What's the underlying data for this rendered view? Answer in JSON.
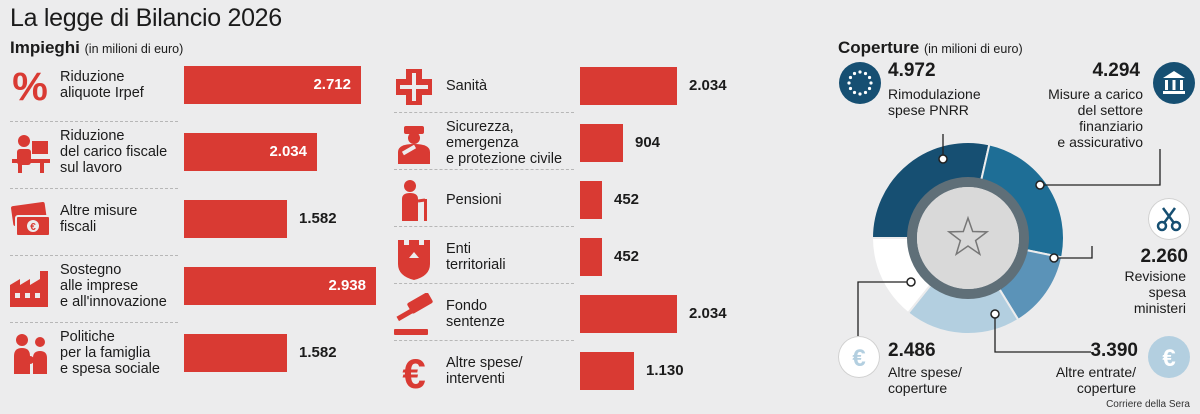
{
  "title": "La legge di Bilancio 2026",
  "impieghi": {
    "heading": "Impieghi",
    "unit": "(in milioni di euro)",
    "left": [
      {
        "label": "Riduzione\naliquote Irpef",
        "value": "2.712",
        "icon": "percent-icon"
      },
      {
        "label": "Riduzione\ndel carico fiscale\nsul lavoro",
        "value": "2.034",
        "icon": "worker-desk-icon"
      },
      {
        "label": "Altre misure\nfiscali",
        "value": "1.582",
        "icon": "banknotes-icon"
      },
      {
        "label": "Sostegno\nalle imprese\ne all'innovazione",
        "value": "2.938",
        "icon": "factory-icon"
      },
      {
        "label": "Politiche\nper la famiglia\ne spesa sociale",
        "value": "1.582",
        "icon": "family-icon"
      }
    ],
    "right": [
      {
        "label": "Sanità",
        "value": "2.034",
        "icon": "health-cross-icon"
      },
      {
        "label": "Sicurezza,\nemergenza\ne protezione civile",
        "value": "904",
        "icon": "police-officer-icon"
      },
      {
        "label": "Pensioni",
        "value": "452",
        "icon": "elderly-person-icon"
      },
      {
        "label": "Enti\nterritoriali",
        "value": "452",
        "icon": "coat-of-arms-icon"
      },
      {
        "label": "Fondo\nsentenze",
        "value": "2.034",
        "icon": "gavel-icon"
      },
      {
        "label": "Altre spese/\ninterventi",
        "value": "1.130",
        "icon": "euro-icon"
      }
    ]
  },
  "coperture": {
    "heading": "Coperture",
    "unit": "(in milioni di euro)",
    "items": [
      {
        "label": "Rimodulazione\nspese PNRR",
        "value": "4.972",
        "icon": "eu-flag-icon",
        "color": "#164f72"
      },
      {
        "label": "Misure a carico\ndel settore\nfinanziario\ne assicurativo",
        "value": "4.294",
        "icon": "bank-icon",
        "color": "#1e6e96"
      },
      {
        "label": "Revisione\nspesa\nministeri",
        "value": "2.260",
        "icon": "scissors-icon",
        "color": "#5b93b8"
      },
      {
        "label": "Altre entrate/\ncoperture",
        "value": "3.390",
        "icon": "euro-coin-icon",
        "color": "#b3cfe0"
      },
      {
        "label": "Altre spese/\ncoperture",
        "value": "2.486",
        "icon": "euro-coin-icon",
        "color": "#ffffff"
      }
    ]
  },
  "credit": "Corriere della Sera",
  "chart_data": [
    {
      "type": "bar",
      "title": "Impieghi",
      "unit": "milioni di euro",
      "categories": [
        "Riduzione aliquote Irpef",
        "Riduzione del carico fiscale sul lavoro",
        "Altre misure fiscali",
        "Sostegno alle imprese e all'innovazione",
        "Politiche per la famiglia e spesa sociale",
        "Sanità",
        "Sicurezza, emergenza e protezione civile",
        "Pensioni",
        "Enti territoriali",
        "Fondo sentenze",
        "Altre spese/interventi"
      ],
      "values": [
        2712,
        2034,
        1582,
        2938,
        1582,
        2034,
        904,
        452,
        452,
        2034,
        1130
      ]
    },
    {
      "type": "pie",
      "title": "Coperture",
      "unit": "milioni di euro",
      "categories": [
        "Rimodulazione spese PNRR",
        "Misure a carico del settore finanziario e assicurativo",
        "Revisione spesa ministeri",
        "Altre entrate/coperture",
        "Altre spese/coperture"
      ],
      "values": [
        4972,
        4294,
        2260,
        3390,
        2486
      ]
    }
  ]
}
